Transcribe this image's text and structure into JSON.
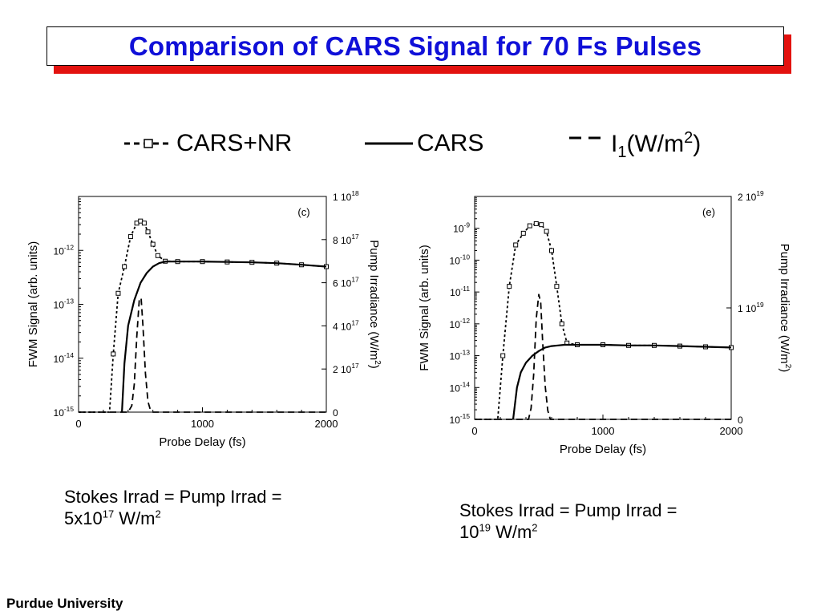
{
  "title": "Comparison of CARS Signal for 70 Fs Pulses",
  "legend": {
    "items": [
      {
        "name": "CARS+NR",
        "style": "dotted-square"
      },
      {
        "name": "CARS",
        "style": "solid"
      },
      {
        "name": "I1(W/m2)",
        "style": "dashed"
      }
    ]
  },
  "chart_data": [
    {
      "type": "line",
      "panel": "(c)",
      "xlabel": "Probe Delay (fs)",
      "ylabel": "FWM Signal (arb. units)",
      "y2label": "Pump Irradiance (W/m2)",
      "xlim": [
        0,
        2000
      ],
      "xticks": [
        "0",
        "1000",
        "2000"
      ],
      "ylim_log": [
        1e-15,
        1e-11
      ],
      "yticks": [
        {
          "base": "10",
          "exp": "-15",
          "value": 1e-15
        },
        {
          "base": "10",
          "exp": "-14",
          "value": 1e-14
        },
        {
          "base": "10",
          "exp": "-13",
          "value": 1e-13
        },
        {
          "base": "10",
          "exp": "-12",
          "value": 1e-12
        }
      ],
      "y2lim": [
        0,
        1e+18
      ],
      "y2ticks": [
        {
          "label": "0",
          "value": 0
        },
        {
          "label": "2 10",
          "exp": "17",
          "value": 2e+17
        },
        {
          "label": "4 10",
          "exp": "17",
          "value": 4e+17
        },
        {
          "label": "6 10",
          "exp": "17",
          "value": 6e+17
        },
        {
          "label": "8 10",
          "exp": "17",
          "value": 8e+17
        },
        {
          "label": "1 10",
          "exp": "18",
          "value": 1e+18
        }
      ],
      "series": [
        {
          "name": "CARS+NR",
          "axis": "left",
          "x": [
            0,
            200,
            250,
            280,
            320,
            370,
            420,
            470,
            500,
            530,
            560,
            600,
            640,
            700,
            800,
            1000,
            1200,
            1400,
            1600,
            1800,
            2000
          ],
          "y": [
            1e-15,
            1e-15,
            1e-15,
            1.2e-14,
            1.6e-13,
            5e-13,
            1.8e-12,
            3.2e-12,
            3.5e-12,
            3.2e-12,
            2.2e-12,
            1.3e-12,
            8e-13,
            6.3e-13,
            6.2e-13,
            6.2e-13,
            6.1e-13,
            6e-13,
            5.8e-13,
            5.4e-13,
            5e-13
          ]
        },
        {
          "name": "CARS",
          "axis": "left",
          "x": [
            350,
            370,
            400,
            450,
            500,
            550,
            600,
            650,
            700,
            800,
            1000,
            1200,
            1400,
            1600,
            1800,
            2000
          ],
          "y": [
            1e-15,
            8e-15,
            4e-14,
            1.2e-13,
            2.5e-13,
            3.8e-13,
            5e-13,
            5.8e-13,
            6.2e-13,
            6.2e-13,
            6.2e-13,
            6.1e-13,
            6e-13,
            5.8e-13,
            5.4e-13,
            5e-13
          ]
        },
        {
          "name": "I1(W/m2)",
          "axis": "right",
          "x": [
            0,
            400,
            430,
            450,
            470,
            490,
            505,
            520,
            540,
            560,
            580,
            600,
            2000
          ],
          "y": [
            0,
            0,
            3e+16,
            1.3e+17,
            3.5e+17,
            5.2e+17,
            5.3e+17,
            4e+17,
            1.8e+17,
            5e+16,
            1e+16,
            0,
            0
          ]
        }
      ]
    },
    {
      "type": "line",
      "panel": "(e)",
      "xlabel": "Probe Delay (fs)",
      "ylabel": "FWM Signal (arb. units)",
      "y2label": "Pump Irradiance (W/m2)",
      "xlim": [
        0,
        2000
      ],
      "xticks": [
        "0",
        "1000",
        "2000"
      ],
      "ylim_log": [
        1e-15,
        1e-08
      ],
      "yticks": [
        {
          "base": "10",
          "exp": "-15",
          "value": 1e-15
        },
        {
          "base": "10",
          "exp": "-14",
          "value": 1e-14
        },
        {
          "base": "10",
          "exp": "-13",
          "value": 1e-13
        },
        {
          "base": "10",
          "exp": "-12",
          "value": 1e-12
        },
        {
          "base": "10",
          "exp": "-11",
          "value": 1e-11
        },
        {
          "base": "10",
          "exp": "-10",
          "value": 1e-10
        },
        {
          "base": "10",
          "exp": "-9",
          "value": 1e-09
        }
      ],
      "y2lim": [
        0,
        2e+19
      ],
      "y2ticks": [
        {
          "label": "0",
          "value": 0
        },
        {
          "label": "1 10",
          "exp": "19",
          "value": 1e+19
        },
        {
          "label": "2 10",
          "exp": "19",
          "value": 2e+19
        }
      ],
      "series": [
        {
          "name": "CARS+NR",
          "axis": "left",
          "x": [
            0,
            150,
            180,
            220,
            270,
            320,
            380,
            430,
            480,
            520,
            560,
            600,
            640,
            680,
            720,
            800,
            1000,
            1200,
            1400,
            1600,
            1800,
            2000
          ],
          "y": [
            1e-15,
            1e-15,
            1e-15,
            1e-13,
            1.5e-11,
            3e-10,
            7e-10,
            1.2e-09,
            1.4e-09,
            1.3e-09,
            8e-10,
            2e-10,
            1.5e-11,
            1e-12,
            2.5e-13,
            2.2e-13,
            2.2e-13,
            2.1e-13,
            2.1e-13,
            2e-13,
            1.9e-13,
            1.8e-13
          ]
        },
        {
          "name": "CARS",
          "axis": "left",
          "x": [
            300,
            330,
            360,
            400,
            450,
            500,
            550,
            600,
            650,
            700,
            800,
            1000,
            1200,
            1400,
            1600,
            1800,
            2000
          ],
          "y": [
            1e-15,
            1e-14,
            3e-14,
            6e-14,
            1e-13,
            1.4e-13,
            1.8e-13,
            2e-13,
            2.1e-13,
            2.2e-13,
            2.2e-13,
            2.2e-13,
            2.1e-13,
            2.1e-13,
            2e-13,
            1.9e-13,
            1.8e-13
          ]
        },
        {
          "name": "I1(W/m2)",
          "axis": "right",
          "x": [
            0,
            420,
            440,
            460,
            480,
            500,
            515,
            530,
            550,
            570,
            590,
            2000
          ],
          "y": [
            0,
            0,
            1e+18,
            4e+18,
            9e+18,
            1.12e+19,
            1.05e+19,
            7e+18,
            3e+18,
            8e+17,
            0,
            0
          ]
        }
      ]
    }
  ],
  "captions": {
    "left": {
      "line1": "Stokes Irrad = Pump Irrad =",
      "pre": "5x10",
      "exp": "17",
      "unit": " W/m",
      "unit_exp": "2"
    },
    "right": {
      "line1": "Stokes Irrad = Pump Irrad =",
      "pre": "10",
      "exp": "19",
      "unit": " W/m",
      "unit_exp": "2"
    }
  },
  "footer": "Purdue University"
}
